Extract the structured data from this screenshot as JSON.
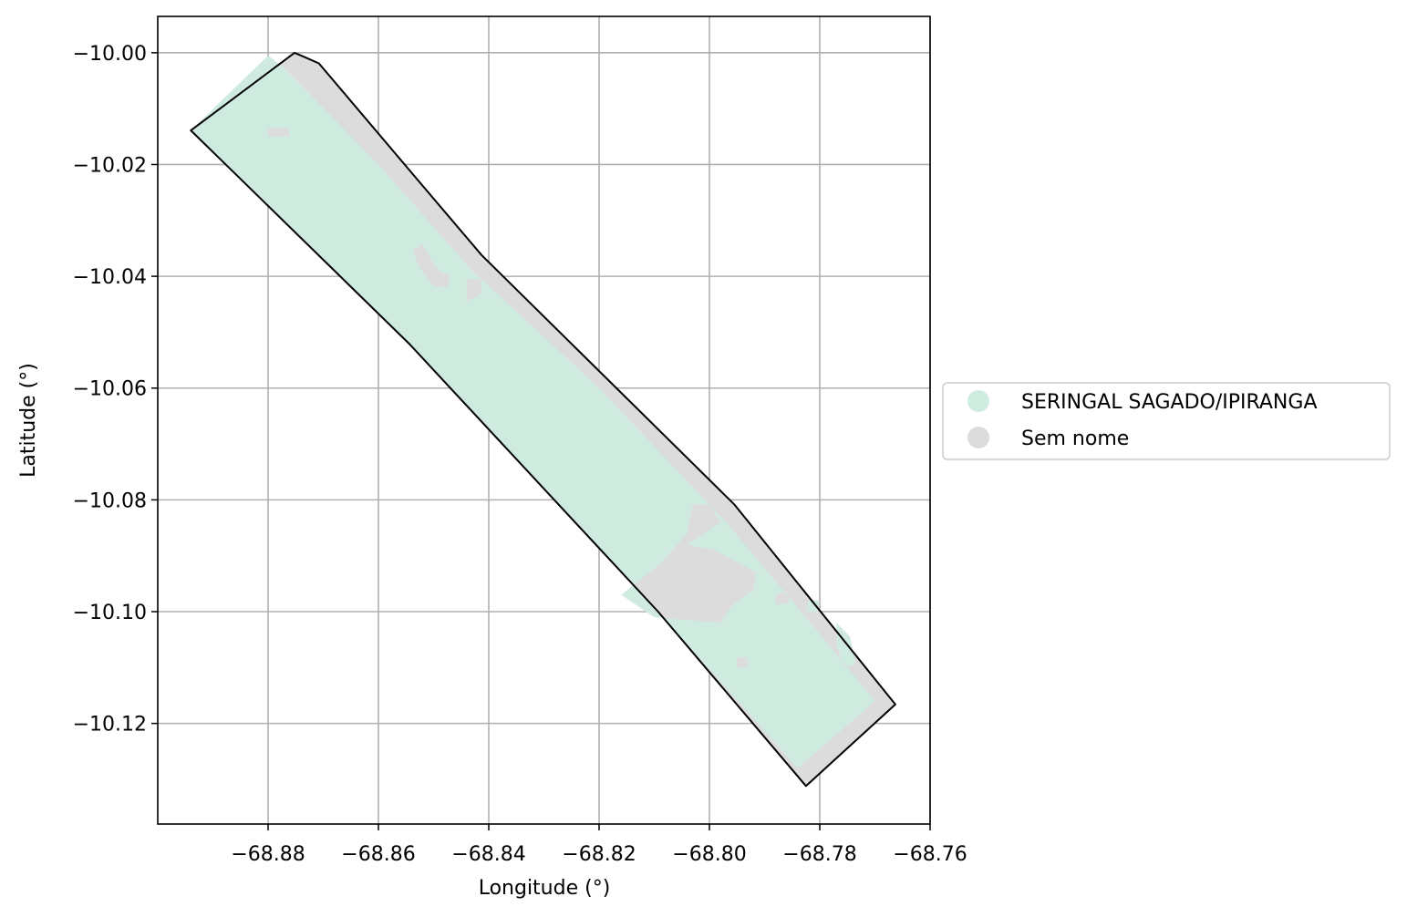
{
  "chart_data": {
    "type": "map",
    "xlabel": "Longitude (°)",
    "ylabel": "Latitude (°)",
    "xlim": [
      -68.9,
      -68.76
    ],
    "ylim": [
      -10.138,
      -9.9935
    ],
    "grid": true,
    "legend_placement": "center-right outside",
    "x_ticks": [
      -68.88,
      -68.86,
      -68.84,
      -68.82,
      -68.8,
      -68.78,
      -68.76
    ],
    "y_ticks": [
      -10.0,
      -10.02,
      -10.04,
      -10.06,
      -10.08,
      -10.1,
      -10.12
    ],
    "x_tick_labels": [
      "−68.88",
      "−68.86",
      "−68.84",
      "−68.82",
      "−68.80",
      "−68.78",
      "−68.76"
    ],
    "y_tick_labels": [
      "−10.00",
      "−10.02",
      "−10.04",
      "−10.06",
      "−10.08",
      "−10.10",
      "−10.12"
    ],
    "series": [
      {
        "name": "Sem nome",
        "color": "#dcdcdc",
        "outline": "#000000",
        "polygon": [
          [
            -68.8752,
            -10.0
          ],
          [
            -68.8733,
            -10.0008
          ],
          [
            -68.8708,
            -10.0019
          ],
          [
            -68.8525,
            -10.0232
          ],
          [
            -68.8413,
            -10.0362
          ],
          [
            -68.7955,
            -10.0808
          ],
          [
            -68.7663,
            -10.1166
          ],
          [
            -68.7825,
            -10.1312
          ],
          [
            -68.8093,
            -10.1
          ],
          [
            -68.8543,
            -10.0522
          ],
          [
            -68.8685,
            -10.0385
          ],
          [
            -68.894,
            -10.0139
          ]
        ]
      },
      {
        "name": "SERINGAL SAGADO/IPIRANGA",
        "color": "#cfebdf",
        "polygon": [
          [
            -68.8768,
            -10.003
          ],
          [
            -68.88,
            -10.0005
          ],
          [
            -68.894,
            -10.0139
          ],
          [
            -68.8685,
            -10.0385
          ],
          [
            -68.8543,
            -10.0522
          ],
          [
            -68.8093,
            -10.1
          ],
          [
            -68.784,
            -10.128
          ],
          [
            -68.77,
            -10.116
          ],
          [
            -68.78,
            -10.104
          ],
          [
            -68.797,
            -10.084
          ],
          [
            -68.82,
            -10.06
          ],
          [
            -68.843,
            -10.039
          ],
          [
            -68.86,
            -10.02
          ]
        ],
        "holes": [
          [
            [
              -68.88,
              -10.0135
            ],
            [
              -68.8762,
              -10.0135
            ],
            [
              -68.8762,
              -10.015
            ],
            [
              -68.88,
              -10.015
            ]
          ],
          [
            [
              -68.8538,
              -10.0355
            ],
            [
              -68.852,
              -10.0342
            ],
            [
              -68.85,
              -10.0378
            ],
            [
              -68.849,
              -10.039
            ],
            [
              -68.847,
              -10.0398
            ],
            [
              -68.8475,
              -10.042
            ],
            [
              -68.85,
              -10.0418
            ],
            [
              -68.8525,
              -10.0385
            ]
          ],
          [
            [
              -68.844,
              -10.0405
            ],
            [
              -68.8415,
              -10.0405
            ],
            [
              -68.8412,
              -10.043
            ],
            [
              -68.844,
              -10.0445
            ]
          ],
          [
            [
              -68.803,
              -10.0808
            ],
            [
              -68.8,
              -10.0808
            ],
            [
              -68.798,
              -10.084
            ],
            [
              -68.804,
              -10.088
            ],
            [
              -68.799,
              -10.089
            ],
            [
              -68.7915,
              -10.093
            ],
            [
              -68.792,
              -10.096
            ],
            [
              -68.796,
              -10.099
            ],
            [
              -68.798,
              -10.102
            ],
            [
              -68.81,
              -10.101
            ],
            [
              -68.816,
              -10.097
            ],
            [
              -68.809,
              -10.0915
            ],
            [
              -68.804,
              -10.086
            ],
            [
              -68.8035,
              -10.083
            ]
          ],
          [
            [
              -68.788,
              -10.0968
            ],
            [
              -68.786,
              -10.0965
            ],
            [
              -68.7855,
              -10.0985
            ],
            [
              -68.788,
              -10.0988
            ]
          ],
          [
            [
              -68.782,
              -10.098
            ],
            [
              -68.78,
              -10.098
            ],
            [
              -68.7805,
              -10.1
            ],
            [
              -68.7825,
              -10.1
            ]
          ],
          [
            [
              -68.795,
              -10.1082
            ],
            [
              -68.793,
              -10.1082
            ],
            [
              -68.793,
              -10.11
            ],
            [
              -68.795,
              -10.11
            ]
          ],
          [
            [
              -68.777,
              -10.102
            ],
            [
              -68.7745,
              -10.1045
            ],
            [
              -68.7735,
              -10.1095
            ],
            [
              -68.7755,
              -10.11
            ],
            [
              -68.777,
              -10.106
            ]
          ]
        ]
      }
    ]
  }
}
